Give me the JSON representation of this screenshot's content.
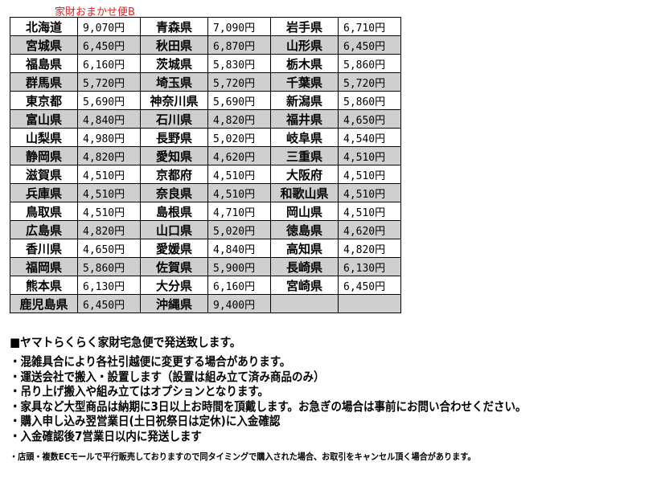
{
  "title": "家財おまかせ便B",
  "rows": [
    [
      "北海道",
      "9,070円",
      "青森県",
      "7,090円",
      "岩手県",
      "6,710円"
    ],
    [
      "宮城県",
      "6,450円",
      "秋田県",
      "6,870円",
      "山形県",
      "6,450円"
    ],
    [
      "福島県",
      "6,160円",
      "茨城県",
      "5,830円",
      "栃木県",
      "5,860円"
    ],
    [
      "群馬県",
      "5,720円",
      "埼玉県",
      "5,720円",
      "千葉県",
      "5,720円"
    ],
    [
      "東京都",
      "5,690円",
      "神奈川県",
      "5,690円",
      "新潟県",
      "5,860円"
    ],
    [
      "富山県",
      "4,840円",
      "石川県",
      "4,820円",
      "福井県",
      "4,650円"
    ],
    [
      "山梨県",
      "4,980円",
      "長野県",
      "5,020円",
      "岐阜県",
      "4,540円"
    ],
    [
      "静岡県",
      "4,820円",
      "愛知県",
      "4,620円",
      "三重県",
      "4,510円"
    ],
    [
      "滋賀県",
      "4,510円",
      "京都府",
      "4,510円",
      "大阪府",
      "4,510円"
    ],
    [
      "兵庫県",
      "4,510円",
      "奈良県",
      "4,510円",
      "和歌山県",
      "4,510円"
    ],
    [
      "鳥取県",
      "4,510円",
      "島根県",
      "4,710円",
      "岡山県",
      "4,510円"
    ],
    [
      "広島県",
      "4,820円",
      "山口県",
      "5,020円",
      "徳島県",
      "4,620円"
    ],
    [
      "香川県",
      "4,650円",
      "愛媛県",
      "4,840円",
      "高知県",
      "4,820円"
    ],
    [
      "福岡県",
      "5,860円",
      "佐賀県",
      "5,900円",
      "長崎県",
      "6,130円"
    ],
    [
      "熊本県",
      "6,130円",
      "大分県",
      "6,160円",
      "宮崎県",
      "6,450円"
    ],
    [
      "鹿児島県",
      "6,450円",
      "沖縄県",
      "9,400円",
      "",
      ""
    ]
  ],
  "notes": {
    "heading": "■ヤマトらくらく家財宅急便で発送致します。",
    "bullets": [
      "・混雑具合により各社引越便に変更する場合があります。",
      "・運送会社で搬入・設置します（設置は組み立て済み商品のみ）",
      "・吊り上げ搬入や組み立てはオプションとなります。",
      "・家具など大型商品は納期に3日以上お時間を頂戴します。お急ぎの場合は事前にお問い合わせください。",
      "・購入申し込み翌営業日(土日祝祭日は定休)に入金確認",
      "・入金確認後7営業日以内に発送します"
    ],
    "small": "・店頭・複数ECモールで平行販売しておりますので同タイミングで購入された場合、お取引をキャンセル頂く場合があります。"
  }
}
